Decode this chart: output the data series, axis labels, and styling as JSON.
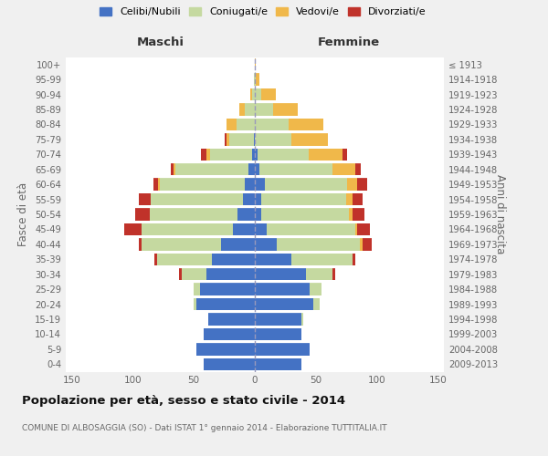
{
  "age_groups": [
    "0-4",
    "5-9",
    "10-14",
    "15-19",
    "20-24",
    "25-29",
    "30-34",
    "35-39",
    "40-44",
    "45-49",
    "50-54",
    "55-59",
    "60-64",
    "65-69",
    "70-74",
    "75-79",
    "80-84",
    "85-89",
    "90-94",
    "95-99",
    "100+"
  ],
  "birth_years": [
    "2009-2013",
    "2004-2008",
    "1999-2003",
    "1994-1998",
    "1989-1993",
    "1984-1988",
    "1979-1983",
    "1974-1978",
    "1969-1973",
    "1964-1968",
    "1959-1963",
    "1954-1958",
    "1949-1953",
    "1944-1948",
    "1939-1943",
    "1934-1938",
    "1929-1933",
    "1924-1928",
    "1919-1923",
    "1914-1918",
    "≤ 1913"
  ],
  "males": {
    "celibi": [
      42,
      48,
      42,
      38,
      48,
      45,
      40,
      35,
      28,
      18,
      14,
      10,
      8,
      5,
      2,
      1,
      0,
      0,
      0,
      0,
      0
    ],
    "coniugati": [
      0,
      0,
      0,
      0,
      2,
      5,
      20,
      45,
      65,
      75,
      72,
      75,
      70,
      60,
      35,
      20,
      15,
      8,
      2,
      1,
      0
    ],
    "vedovi": [
      0,
      0,
      0,
      0,
      0,
      0,
      0,
      0,
      0,
      0,
      0,
      0,
      1,
      2,
      3,
      2,
      8,
      5,
      2,
      0,
      0
    ],
    "divorziati": [
      0,
      0,
      0,
      0,
      0,
      0,
      2,
      2,
      2,
      14,
      12,
      10,
      4,
      2,
      4,
      2,
      0,
      0,
      0,
      0,
      0
    ]
  },
  "females": {
    "nubili": [
      38,
      45,
      38,
      38,
      48,
      45,
      42,
      30,
      18,
      10,
      5,
      5,
      8,
      4,
      2,
      0,
      0,
      0,
      0,
      0,
      0
    ],
    "coniugate": [
      0,
      0,
      0,
      2,
      5,
      10,
      22,
      50,
      68,
      72,
      72,
      70,
      68,
      60,
      42,
      30,
      28,
      15,
      5,
      1,
      0
    ],
    "vedove": [
      0,
      0,
      0,
      0,
      0,
      0,
      0,
      0,
      2,
      2,
      3,
      5,
      8,
      18,
      28,
      30,
      28,
      20,
      12,
      3,
      1
    ],
    "divorziate": [
      0,
      0,
      0,
      0,
      0,
      0,
      2,
      2,
      8,
      10,
      10,
      8,
      8,
      5,
      4,
      0,
      0,
      0,
      0,
      0,
      0
    ]
  },
  "colors": {
    "celibi_nubili": "#4472c4",
    "coniugati": "#c5d9a0",
    "vedovi": "#f0b84a",
    "divorziati": "#c0322a"
  },
  "xlim": 155,
  "title": "Popolazione per età, sesso e stato civile - 2014",
  "subtitle": "COMUNE DI ALBOSAGGIA (SO) - Dati ISTAT 1° gennaio 2014 - Elaborazione TUTTITALIA.IT",
  "ylabel_left": "Fasce di età",
  "ylabel_right": "Anni di nascita",
  "xlabel_left": "Maschi",
  "xlabel_right": "Femmine",
  "bg_color": "#f0f0f0",
  "plot_bg_color": "#ffffff"
}
